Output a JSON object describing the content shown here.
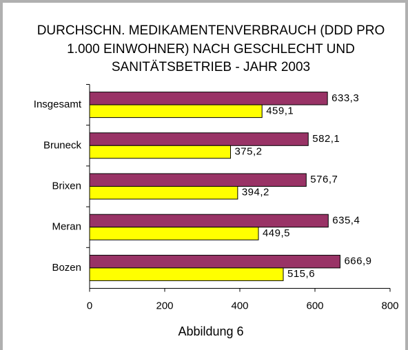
{
  "chart_data": {
    "type": "hbar",
    "title": [
      "DURCHSCHN. MEDIKAMENTENVERBRAUCH (DDD PRO",
      "1.000 EINWOHNER) NACH GESCHLECHT UND",
      "SANITÄTSBETRIEB - JAHR 2003"
    ],
    "xlabel": "Abbildung 6",
    "categories": [
      "Insgesamt",
      "Bruneck",
      "Brixen",
      "Meran",
      "Bozen"
    ],
    "series": [
      {
        "color": "#993366",
        "values": [
          633.3,
          582.1,
          576.7,
          635.4,
          666.9
        ],
        "value_labels": [
          "633,3",
          "582,1",
          "576,7",
          "635,4",
          "666,9"
        ]
      },
      {
        "color": "#ffff00",
        "values": [
          459.1,
          375.2,
          394.2,
          449.5,
          515.6
        ],
        "value_labels": [
          "459,1",
          "375,2",
          "394,2",
          "449,5",
          "515,6"
        ]
      }
    ],
    "xlim": [
      0,
      800
    ],
    "xticks": [
      0,
      200,
      400,
      600,
      800
    ],
    "grid": false
  }
}
